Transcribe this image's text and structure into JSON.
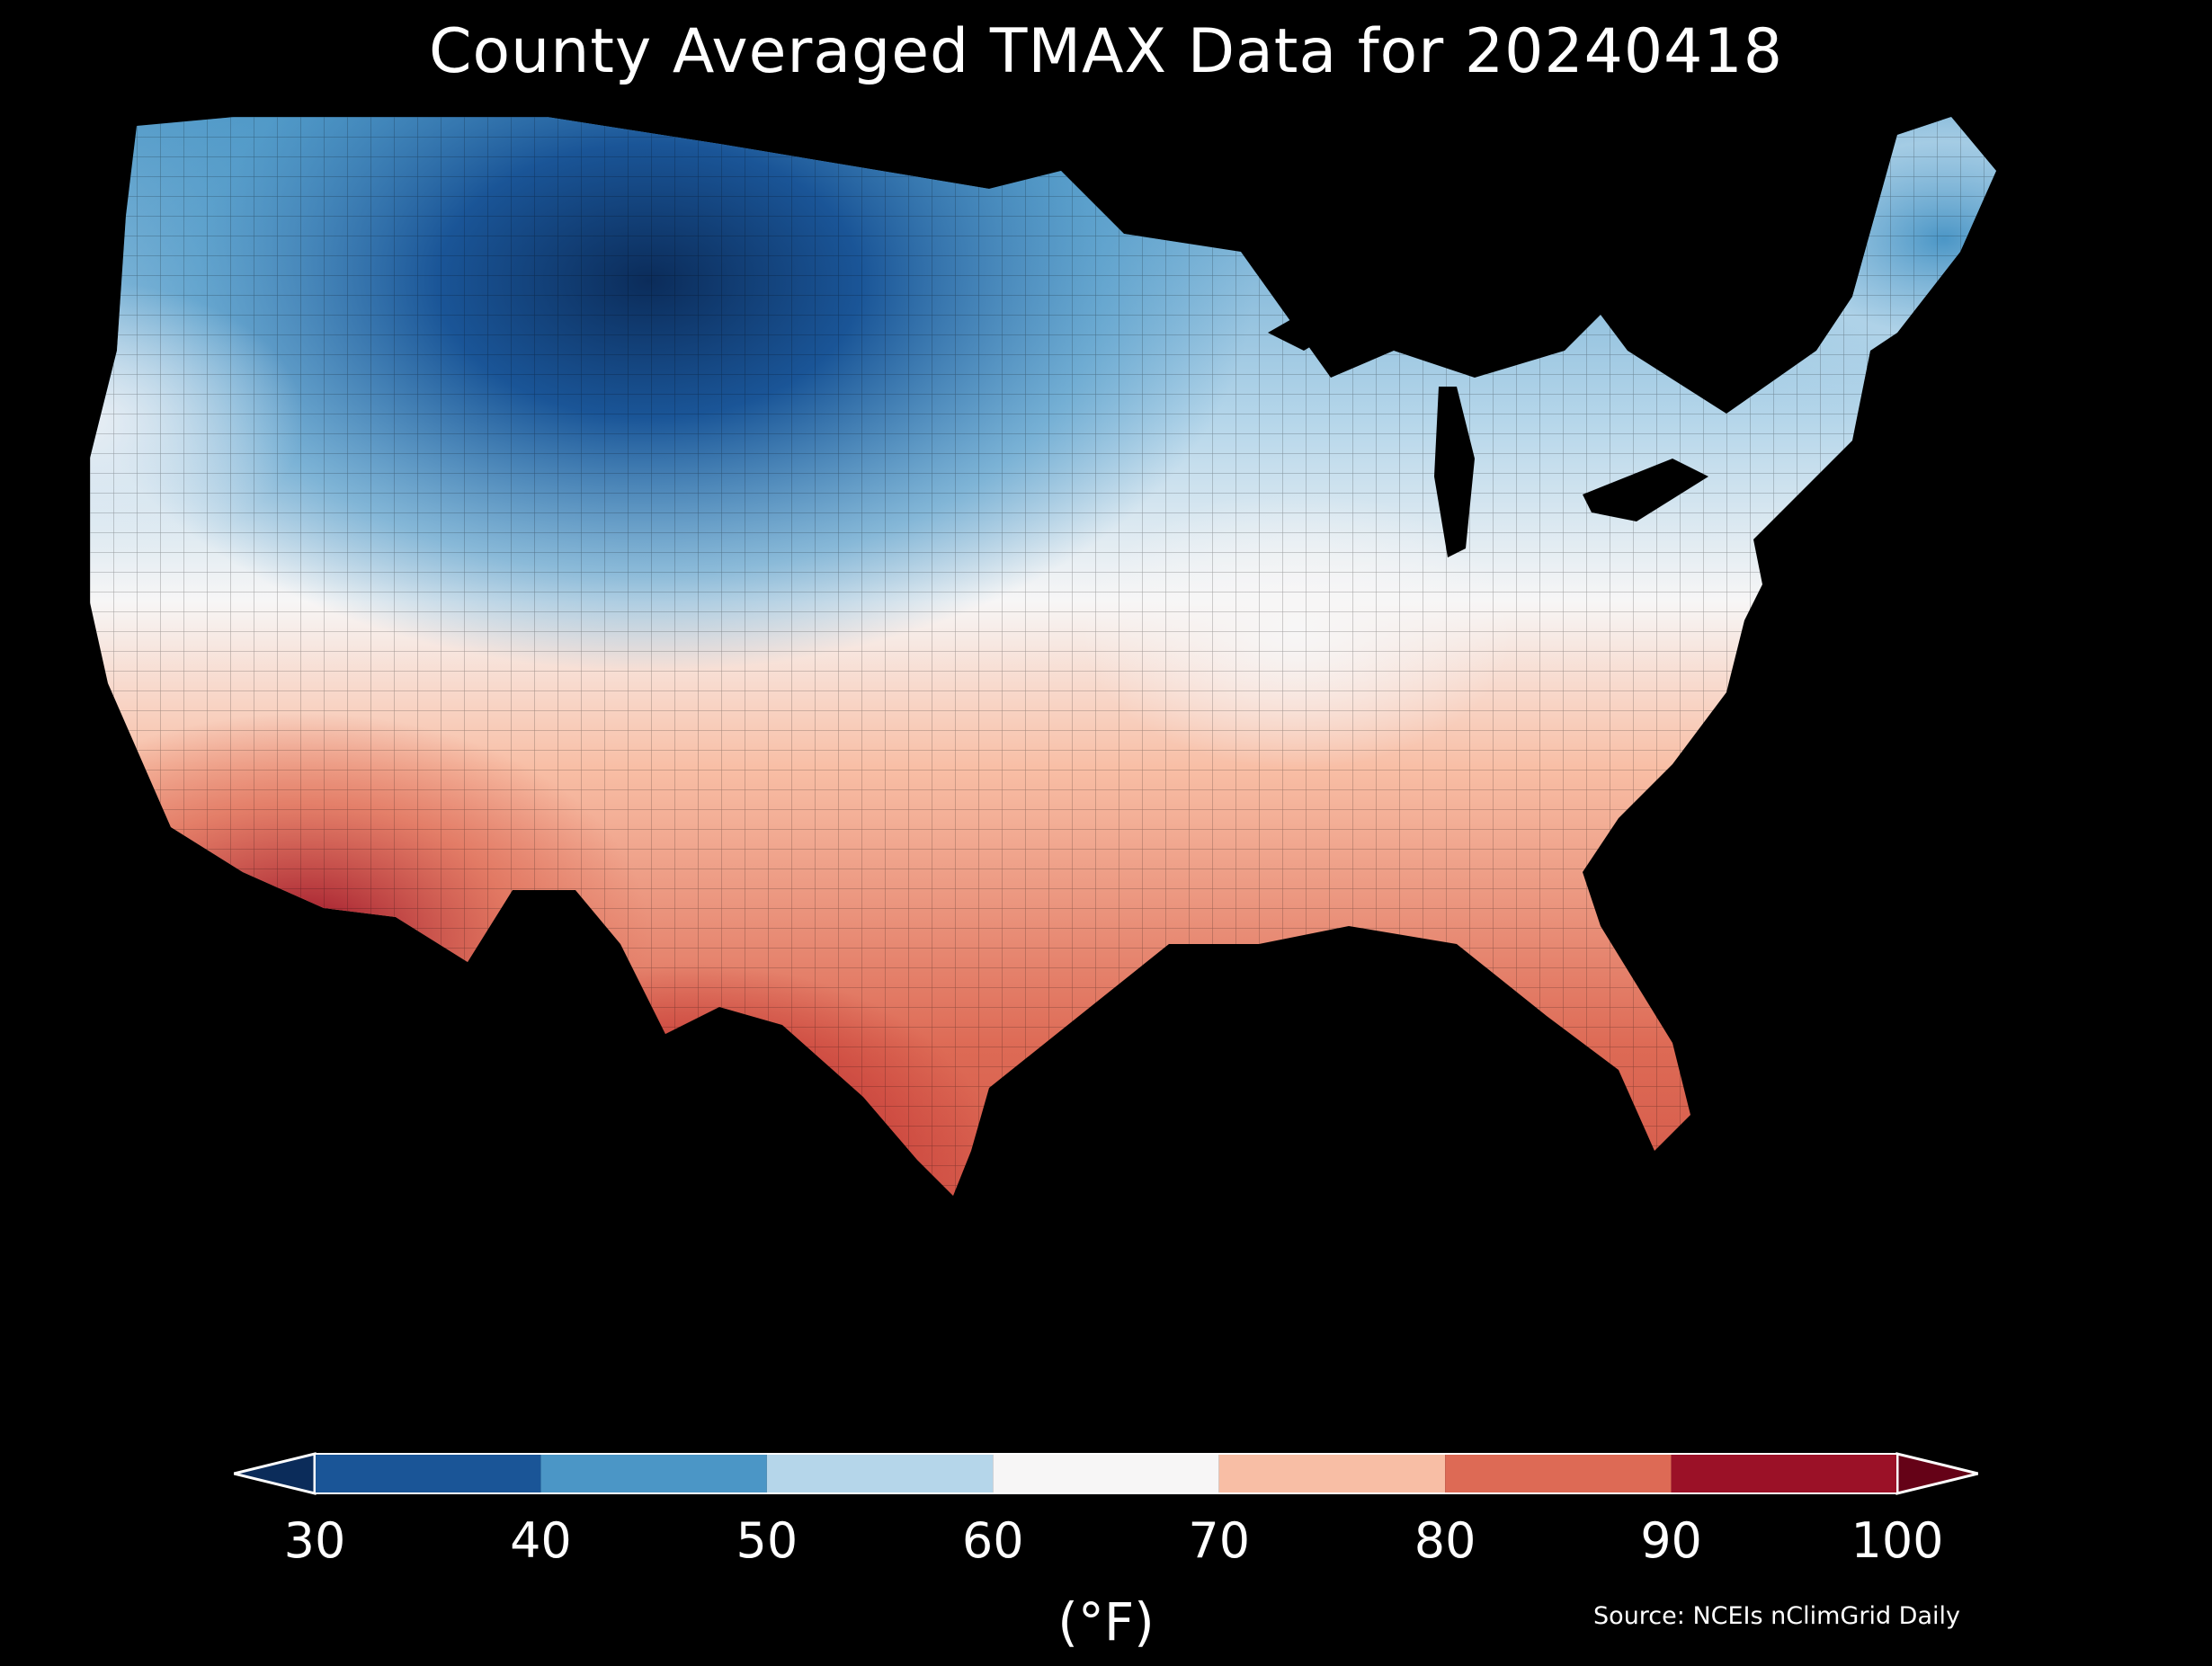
{
  "title": "County Averaged TMAX Data for 20240418",
  "colorbar": {
    "ticks": [
      "30",
      "40",
      "50",
      "60",
      "70",
      "80",
      "90",
      "100"
    ],
    "tick_values": [
      30,
      40,
      50,
      60,
      70,
      80,
      90,
      100
    ],
    "colors": [
      "#1a5597",
      "#4b96c6",
      "#b5d6ea",
      "#f7f6f6",
      "#f8bea5",
      "#dd6a55",
      "#9b1127"
    ],
    "under_color": "#0b2c5a",
    "over_color": "#650217",
    "units": "(°F)"
  },
  "source": "Source: NCEIs nClimGrid Daily",
  "map": {
    "region": "contiguous-united-states",
    "variable": "TMAX",
    "pattern_description_colors": {
      "coldest": "#0b2c5a",
      "hottest": "#650217"
    }
  }
}
